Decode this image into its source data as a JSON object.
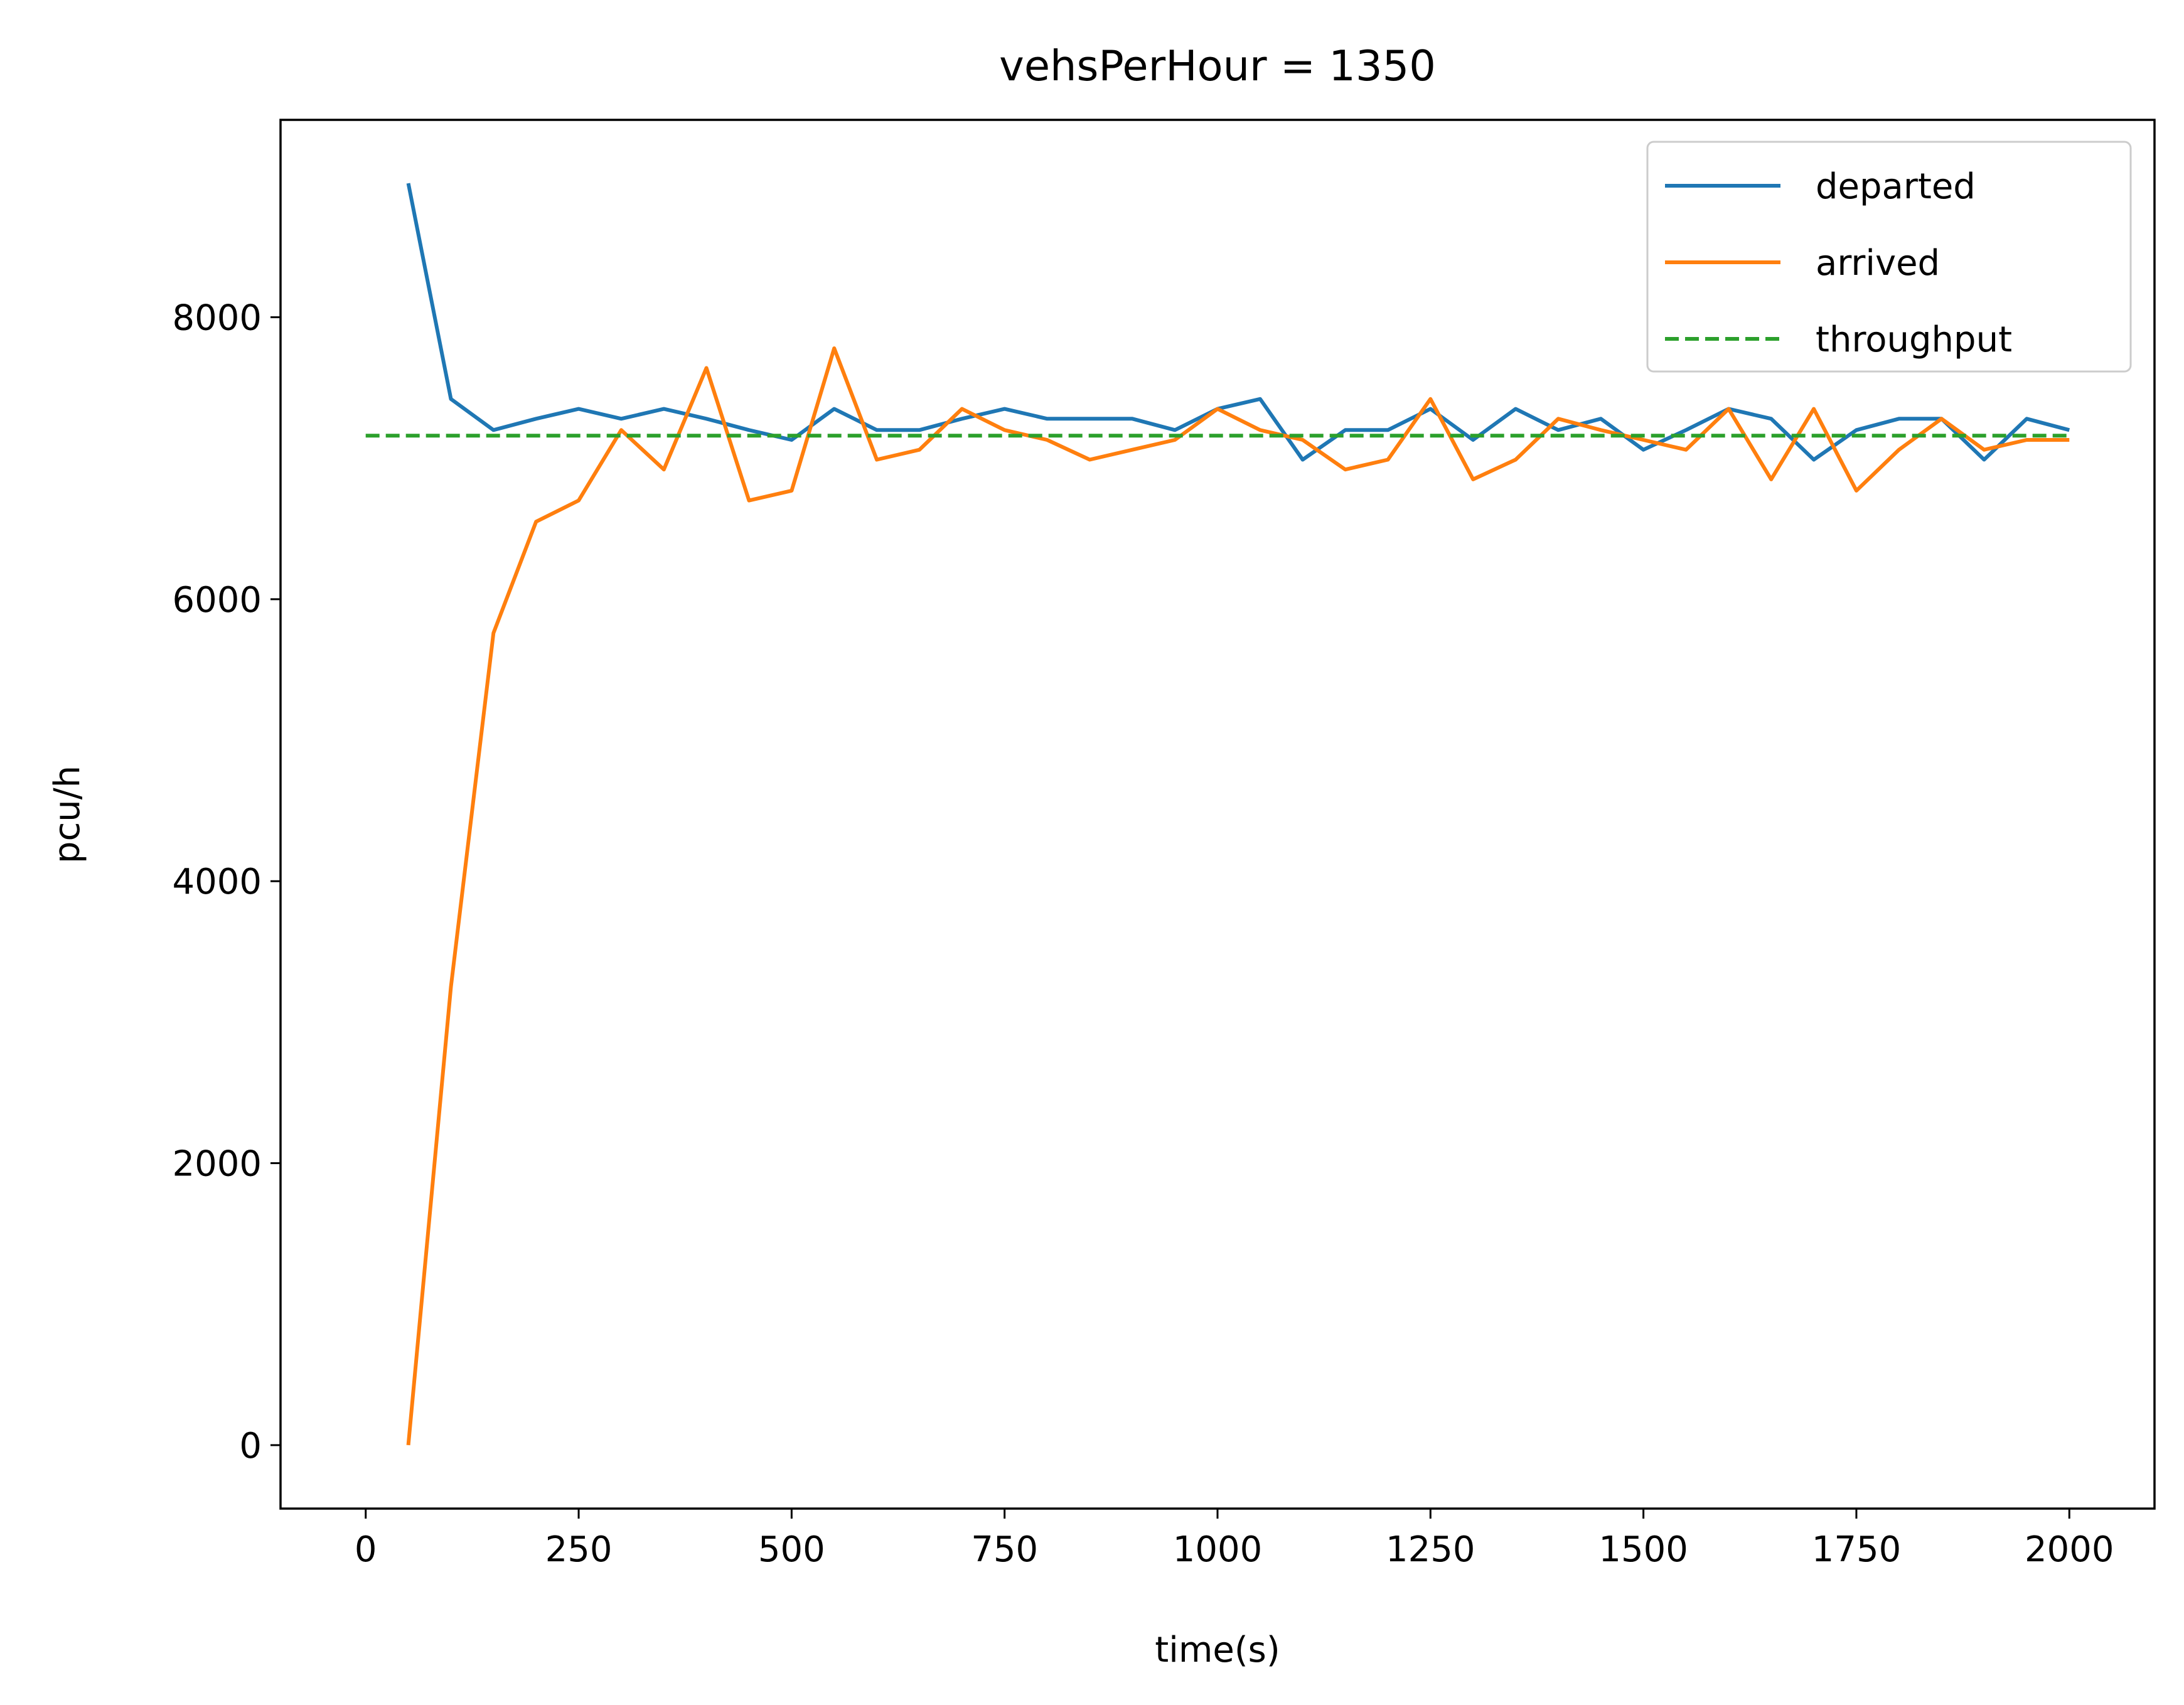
{
  "chart_data": {
    "type": "line",
    "title": "vehsPerHour = 1350",
    "xlabel": "time(s)",
    "ylabel": "pcu/h",
    "xlim": [
      -100,
      2100
    ],
    "ylim": [
      -450,
      9400
    ],
    "xticks": [
      0,
      250,
      500,
      750,
      1000,
      1250,
      1500,
      1750,
      2000
    ],
    "xtick_labels": [
      "0",
      "250",
      "500",
      "750",
      "1000",
      "1250",
      "1500",
      "1750",
      "2000"
    ],
    "yticks": [
      0,
      2000,
      4000,
      6000,
      8000
    ],
    "ytick_labels": [
      "0",
      "2000",
      "4000",
      "6000",
      "8000"
    ],
    "grid": false,
    "legend_position": "top-right",
    "x": [
      50,
      100,
      150,
      200,
      250,
      300,
      350,
      400,
      450,
      500,
      550,
      600,
      650,
      700,
      750,
      800,
      850,
      900,
      950,
      1000,
      1050,
      1100,
      1150,
      1200,
      1250,
      1300,
      1350,
      1400,
      1450,
      1500,
      1550,
      1600,
      1650,
      1700,
      1750,
      1800,
      1850,
      1900,
      1950,
      2000
    ],
    "series": [
      {
        "name": "departed",
        "color": "#1f77b4",
        "style": "solid",
        "values": [
          8950,
          7420,
          7200,
          7280,
          7350,
          7280,
          7350,
          7280,
          7200,
          7130,
          7350,
          7200,
          7200,
          7280,
          7350,
          7280,
          7280,
          7280,
          7200,
          7350,
          7420,
          6990,
          7200,
          7200,
          7350,
          7130,
          7350,
          7200,
          7280,
          7060,
          7200,
          7350,
          7280,
          6990,
          7200,
          7280,
          7280,
          6990,
          7280,
          7200
        ]
      },
      {
        "name": "arrived",
        "color": "#ff7f0e",
        "style": "solid",
        "values": [
          0,
          3250,
          5760,
          6550,
          6700,
          7200,
          6920,
          7640,
          6700,
          6770,
          7780,
          6990,
          7060,
          7350,
          7200,
          7130,
          6990,
          7060,
          7130,
          7350,
          7200,
          7130,
          6920,
          6990,
          7420,
          6850,
          6990,
          7280,
          7200,
          7130,
          7060,
          7350,
          6850,
          7350,
          6770,
          7060,
          7280,
          7060,
          7130,
          7130
        ]
      },
      {
        "name": "throughput",
        "color": "#2ca02c",
        "style": "dashed",
        "x": [
          0,
          2000
        ],
        "values": [
          7160,
          7160
        ]
      }
    ]
  }
}
